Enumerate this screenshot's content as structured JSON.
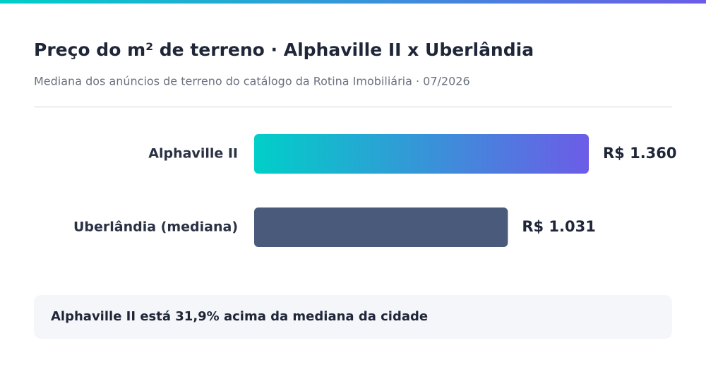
{
  "chart_data": {
    "type": "hbar",
    "title": "Preço do m² de terreno · Alphaville II x Uberlândia",
    "subtitle": "Mediana dos anúncios de terreno do catálogo da Rotina Imobiliária · 07/2026",
    "categories": [
      "Alphaville II",
      "Uberlândia (mediana)"
    ],
    "values": [
      1360,
      1031
    ],
    "value_labels": [
      "R$ 1.360",
      "R$ 1.031"
    ],
    "colors": [
      "#00cfc8",
      "#4a5a7b"
    ],
    "highlight_gradient_end": "#6c5ce7",
    "annotation": "Alphaville II está 31,9% acima da mediana da cidade"
  }
}
